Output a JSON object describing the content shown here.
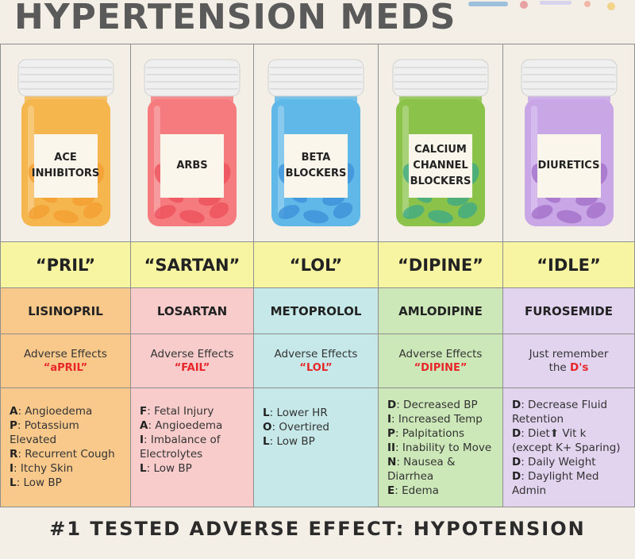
{
  "title": "HYPERTENSION MEDS",
  "classes": [
    {
      "label": "ACE\nINHIBITORS",
      "bottle_color": "#f5b64e",
      "pill_color": "#f39c2f",
      "suffix": "“PRIL”",
      "drug": "LISINOPRIL",
      "adverse_title": "Adverse Effects",
      "adverse_mnemonic": "“aPRIL”",
      "effects": [
        {
          "k": "A",
          "v": ": Angioedema"
        },
        {
          "k": "P",
          "v": ": Potassium Elevated"
        },
        {
          "k": "R",
          "v": ": Recurrent Cough"
        },
        {
          "k": "I",
          "v": ": Itchy Skin"
        },
        {
          "k": "L",
          "v": ": Low BP"
        }
      ]
    },
    {
      "label": "ARBS",
      "bottle_color": "#f57b7e",
      "pill_color": "#ec4f59",
      "suffix": "“SARTAN”",
      "drug": "LOSARTAN",
      "adverse_title": "Adverse Effects",
      "adverse_mnemonic": "“FAIL”",
      "effects": [
        {
          "k": "F",
          "v": ": Fetal Injury"
        },
        {
          "k": "A",
          "v": ": Angioedema"
        },
        {
          "k": "I",
          "v": ": Imbalance of Electrolytes"
        },
        {
          "k": "L",
          "v": ": Low BP"
        }
      ]
    },
    {
      "label": "BETA\nBLOCKERS",
      "bottle_color": "#5fb8e8",
      "pill_color": "#3a8fd8",
      "suffix": "“LOL”",
      "drug": "METOPROLOL",
      "adverse_title": "Adverse Effects",
      "adverse_mnemonic": "“LOL”",
      "effects": [
        {
          "k": "L",
          "v": ": Lower HR"
        },
        {
          "k": "O",
          "v": ": Overtired"
        },
        {
          "k": "L",
          "v": ": Low BP"
        }
      ]
    },
    {
      "label": "CALCIUM\nCHANNEL\nBLOCKERS",
      "bottle_color": "#8bc34a",
      "pill_color": "#3aa88a",
      "suffix": "“DIPINE”",
      "drug": "AMLODIPINE",
      "adverse_title": "Adverse Effects",
      "adverse_mnemonic": "“DIPINE”",
      "effects": [
        {
          "k": "D",
          "v": ": Decreased BP"
        },
        {
          "k": "I",
          "v": ": Increased Temp"
        },
        {
          "k": "P",
          "v": ": Palpitations"
        },
        {
          "k": "II",
          "v": ": Inability to Move"
        },
        {
          "k": "N",
          "v": ": Nausea & Diarrhea"
        },
        {
          "k": "E",
          "v": ": Edema"
        }
      ]
    },
    {
      "label": "DIURETICS",
      "bottle_color": "#c9a6e6",
      "pill_color": "#a06cc8",
      "suffix": "“IDLE”",
      "drug": "FUROSEMIDE",
      "adverse_title": "Just remember",
      "adverse_pre": "the ",
      "adverse_mnemonic": "D's",
      "effects": [
        {
          "k": "D",
          "v": ": Decrease Fluid Retention"
        },
        {
          "k": "D",
          "v": ": Diet⬆ Vit k (except K+ Sparing)"
        },
        {
          "k": "D",
          "v": ": Daily Weight"
        },
        {
          "k": "D",
          "v": ": Daylight Med Admin"
        }
      ]
    }
  ],
  "footer": "#1 TESTED ADVERSE EFFECT: HYPOTENSION"
}
